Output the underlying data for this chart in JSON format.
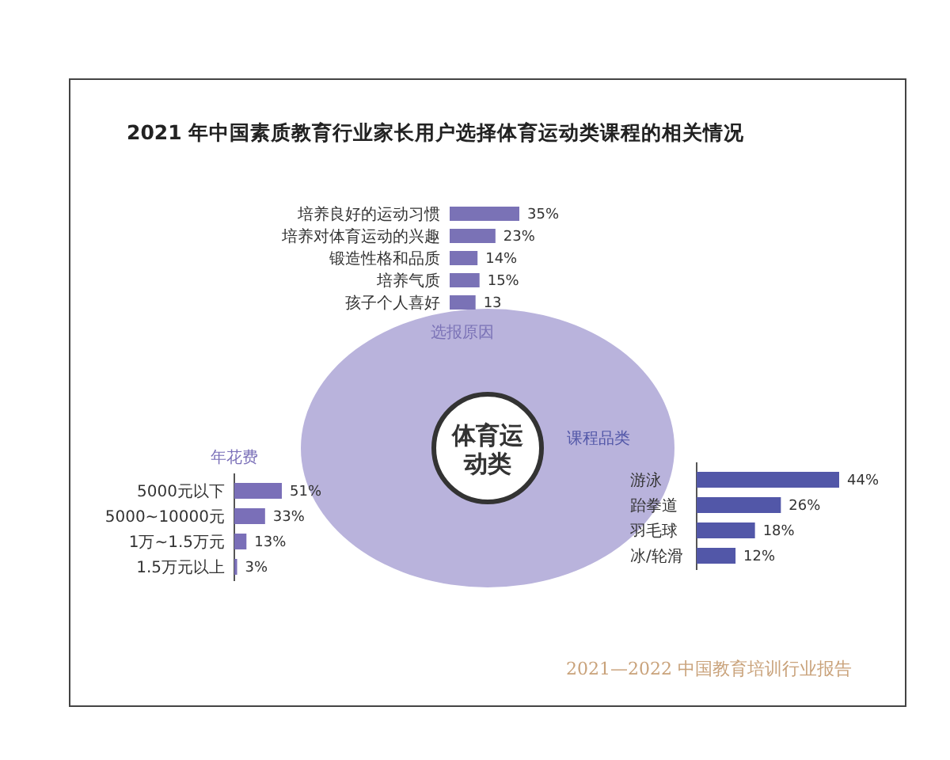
{
  "chart_data": [
    {
      "type": "other",
      "title": "2021 年中国素质教育行业家长用户选择体育运动类课程的相关情况",
      "annotations": [
        "体育运动类",
        "2021—2022 中国教育培训行业报告"
      ]
    },
    {
      "type": "bar",
      "orientation": "horizontal",
      "title": "选报原因",
      "categories": [
        "培养良好的运动习惯",
        "培养对体育运动的兴趣",
        "锻造性格和品质",
        "培养气质",
        "孩子个人喜好"
      ],
      "values": [
        35,
        23,
        14,
        15,
        13
      ],
      "value_labels": [
        "35%",
        "23%",
        "14%",
        "15%",
        "13"
      ],
      "color": "#7a72b6"
    },
    {
      "type": "bar",
      "orientation": "horizontal",
      "title": "年花费",
      "categories": [
        "5000元以下",
        "5000~10000元",
        "1万~1.5万元",
        "1.5万元以上"
      ],
      "values": [
        51,
        33,
        13,
        3
      ],
      "value_labels": [
        "51%",
        "33%",
        "13%",
        "3%"
      ],
      "color": "#7a6fb8"
    },
    {
      "type": "bar",
      "orientation": "horizontal",
      "title": "课程品类",
      "categories": [
        "游泳",
        "跆拳道",
        "羽毛球",
        "冰/轮滑"
      ],
      "values": [
        44,
        26,
        18,
        12
      ],
      "value_labels": [
        "44%",
        "26%",
        "18%",
        "12%"
      ],
      "color": "#5257a8"
    }
  ]
}
